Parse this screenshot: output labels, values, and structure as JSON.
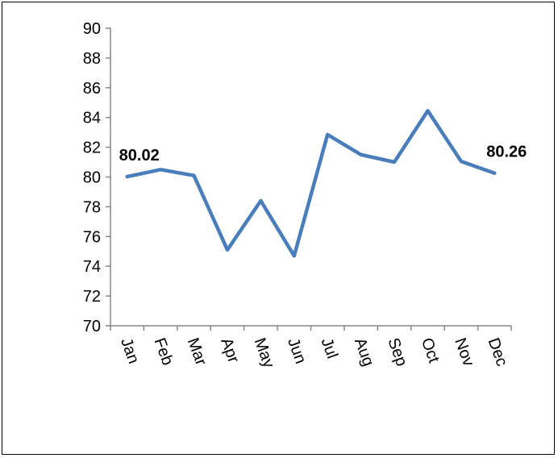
{
  "chart_data": {
    "type": "line",
    "title": "",
    "xlabel": "",
    "ylabel": "",
    "categories": [
      "Jan",
      "Feb",
      "Mar",
      "Apr",
      "May",
      "Jun",
      "Jul",
      "Aug",
      "Sep",
      "Oct",
      "Nov",
      "Dec"
    ],
    "series": [
      {
        "values": [
          80.02,
          80.5,
          80.1,
          75.1,
          78.4,
          74.7,
          82.85,
          81.5,
          81.0,
          84.45,
          81.05,
          80.26
        ],
        "color": "#4a7ebb"
      }
    ],
    "ylim": [
      70,
      90
    ],
    "yticks": [
      "70",
      "72",
      "74",
      "76",
      "78",
      "80",
      "82",
      "84",
      "86",
      "88",
      "90"
    ],
    "data_labels": [
      {
        "index": 0,
        "text": "80.02"
      },
      {
        "index": 11,
        "text": "80.26"
      }
    ],
    "grid": false,
    "legend": "none",
    "x_tick_rotation": "vertical-ish (about 70 degrees)"
  }
}
